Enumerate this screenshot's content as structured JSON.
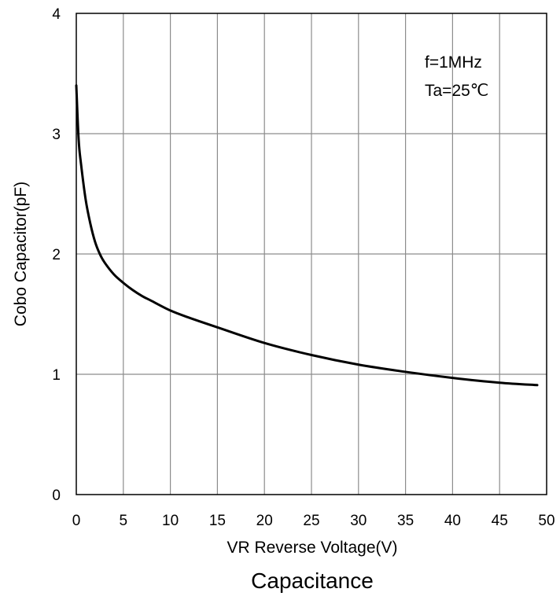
{
  "chart_data": {
    "type": "line",
    "title": "",
    "caption": "Capacitance",
    "xlabel": "VR Reverse Voltage(V)",
    "ylabel": "Cobo Capacitor(pF)",
    "xlim": [
      0,
      50
    ],
    "ylim": [
      0,
      4
    ],
    "xticks": [
      "0",
      "5",
      "10",
      "15",
      "20",
      "25",
      "30",
      "35",
      "40",
      "45",
      "50"
    ],
    "yticks": [
      "0",
      "1",
      "2",
      "3",
      "4"
    ],
    "grid": true,
    "annotations": [
      "f=1MHz",
      "Ta=25℃"
    ],
    "series": [
      {
        "color": "#000000",
        "x": [
          0,
          0.25,
          0.5,
          1,
          1.5,
          2,
          2.5,
          3,
          4,
          5,
          6,
          7,
          8,
          10,
          12,
          15,
          20,
          25,
          30,
          35,
          40,
          45,
          49
        ],
        "y": [
          3.4,
          2.95,
          2.75,
          2.45,
          2.25,
          2.1,
          2.0,
          1.93,
          1.83,
          1.76,
          1.7,
          1.65,
          1.61,
          1.53,
          1.47,
          1.39,
          1.26,
          1.16,
          1.08,
          1.02,
          0.97,
          0.93,
          0.91
        ]
      }
    ]
  }
}
